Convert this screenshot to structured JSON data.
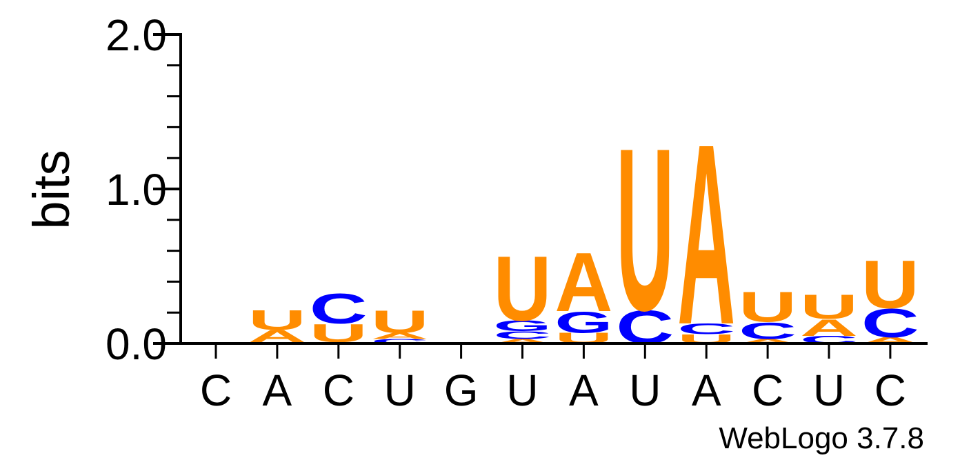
{
  "chart_data": {
    "type": "sequence-logo",
    "ylabel": "bits",
    "ylim": [
      0,
      2
    ],
    "yticks": [
      "0.0",
      "1.0",
      "2.0"
    ],
    "yticks_values": [
      0,
      1,
      2
    ],
    "minor_tick_step": 0.2,
    "x_labels": [
      "C",
      "A",
      "C",
      "U",
      "G",
      "U",
      "A",
      "U",
      "A",
      "C",
      "U",
      "C"
    ],
    "colors": {
      "A": "#ff8c00",
      "U": "#ff8c00",
      "C": "#0000ff",
      "G": "#0000ff"
    },
    "positions": [
      {
        "label": "C",
        "stack": []
      },
      {
        "label": "A",
        "stack": [
          {
            "letter": "C",
            "bits": 0.01
          },
          {
            "letter": "A",
            "bits": 0.08
          },
          {
            "letter": "U",
            "bits": 0.13
          }
        ]
      },
      {
        "label": "C",
        "stack": [
          {
            "letter": "A",
            "bits": 0.01
          },
          {
            "letter": "U",
            "bits": 0.12
          },
          {
            "letter": "C",
            "bits": 0.2
          }
        ]
      },
      {
        "label": "U",
        "stack": [
          {
            "letter": "C",
            "bits": 0.03
          },
          {
            "letter": "A",
            "bits": 0.04
          },
          {
            "letter": "U",
            "bits": 0.15
          }
        ]
      },
      {
        "label": "G",
        "stack": []
      },
      {
        "label": "U",
        "stack": [
          {
            "letter": "A",
            "bits": 0.03
          },
          {
            "letter": "C",
            "bits": 0.05
          },
          {
            "letter": "G",
            "bits": 0.07
          },
          {
            "letter": "U",
            "bits": 0.43
          }
        ]
      },
      {
        "label": "A",
        "stack": [
          {
            "letter": "U",
            "bits": 0.07
          },
          {
            "letter": "G",
            "bits": 0.14
          },
          {
            "letter": "A",
            "bits": 0.39
          }
        ]
      },
      {
        "label": "U",
        "stack": [
          {
            "letter": "C",
            "bits": 0.22
          },
          {
            "letter": "U",
            "bits": 1.08
          }
        ]
      },
      {
        "label": "A",
        "stack": [
          {
            "letter": "U",
            "bits": 0.06
          },
          {
            "letter": "C",
            "bits": 0.07
          },
          {
            "letter": "A",
            "bits": 1.2
          }
        ]
      },
      {
        "label": "C",
        "stack": [
          {
            "letter": "A",
            "bits": 0.03
          },
          {
            "letter": "C",
            "bits": 0.11
          },
          {
            "letter": "U",
            "bits": 0.2
          }
        ]
      },
      {
        "label": "U",
        "stack": [
          {
            "letter": "C",
            "bits": 0.05
          },
          {
            "letter": "A",
            "bits": 0.11
          },
          {
            "letter": "U",
            "bits": 0.16
          }
        ]
      },
      {
        "label": "C",
        "stack": [
          {
            "letter": "A",
            "bits": 0.04
          },
          {
            "letter": "C",
            "bits": 0.19
          },
          {
            "letter": "U",
            "bits": 0.32
          }
        ]
      }
    ]
  },
  "footer": {
    "credit": "WebLogo 3.7.8"
  }
}
